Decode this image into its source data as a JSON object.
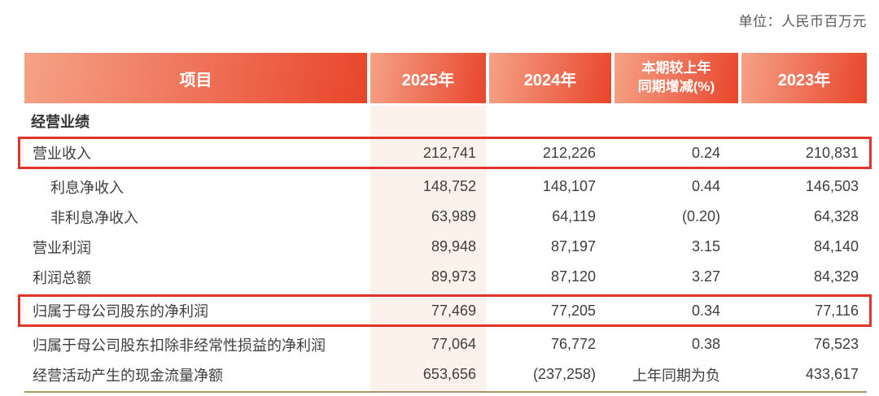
{
  "unit_note": "单位：人民币百万元",
  "colors": {
    "grad-start": "#f5a287",
    "grad-end": "#e8452b",
    "col-pink": "#fcf1eb",
    "box-red": "#e1332a",
    "rule-tan": "#ab9668",
    "text-dark": "#3e3e3e",
    "text-gray": "#5a5a5a"
  },
  "table": {
    "columns": [
      "项目",
      "2025年",
      "2024年",
      "本期较上年\n同期增减(%)",
      "2023年"
    ],
    "section": "经营业绩",
    "rows": [
      {
        "label": "营业收入",
        "indent": false,
        "highlight": true,
        "values": [
          "212,741",
          "212,226",
          "0.24",
          "210,831"
        ]
      },
      {
        "label": "利息净收入",
        "indent": true,
        "highlight": false,
        "values": [
          "148,752",
          "148,107",
          "0.44",
          "146,503"
        ]
      },
      {
        "label": "非利息净收入",
        "indent": true,
        "highlight": false,
        "values": [
          "63,989",
          "64,119",
          "(0.20)",
          "64,328"
        ]
      },
      {
        "label": "营业利润",
        "indent": false,
        "highlight": false,
        "values": [
          "89,948",
          "87,197",
          "3.15",
          "84,140"
        ]
      },
      {
        "label": "利润总额",
        "indent": false,
        "highlight": false,
        "values": [
          "89,973",
          "87,120",
          "3.27",
          "84,329"
        ]
      },
      {
        "label": "归属于母公司股东的净利润",
        "indent": false,
        "highlight": true,
        "values": [
          "77,469",
          "77,205",
          "0.34",
          "77,116"
        ]
      },
      {
        "label": "归属于母公司股东扣除非经常性损益的净利润",
        "indent": false,
        "highlight": false,
        "values": [
          "77,064",
          "76,772",
          "0.38",
          "76,523"
        ]
      },
      {
        "label": "经营活动产生的现金流量净额",
        "indent": false,
        "highlight": false,
        "values": [
          "653,656",
          "(237,258)",
          "上年同期为负",
          "433,617"
        ]
      }
    ]
  }
}
